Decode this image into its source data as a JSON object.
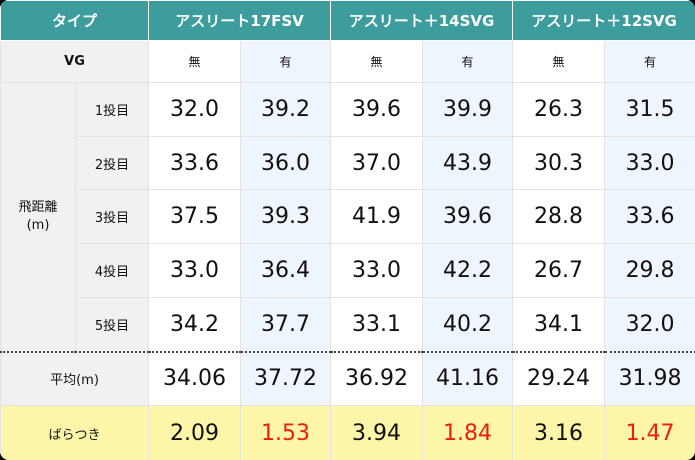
{
  "header": {
    "type_label": "タイプ",
    "models": [
      "アスリート17FSV",
      "アスリート＋14SVG",
      "アスリート＋12SVG"
    ]
  },
  "vg_row": {
    "label": "VG",
    "values": [
      "無",
      "有",
      "無",
      "有",
      "無",
      "有"
    ]
  },
  "distance": {
    "label": "飛距離\n(m)",
    "rows": [
      {
        "label": "1投目",
        "values": [
          "32.0",
          "39.2",
          "39.6",
          "39.9",
          "26.3",
          "31.5"
        ]
      },
      {
        "label": "2投目",
        "values": [
          "33.6",
          "36.0",
          "37.0",
          "43.9",
          "30.3",
          "33.0"
        ]
      },
      {
        "label": "3投目",
        "values": [
          "37.5",
          "39.3",
          "41.9",
          "39.6",
          "28.8",
          "33.6"
        ]
      },
      {
        "label": "4投目",
        "values": [
          "33.0",
          "36.4",
          "33.0",
          "42.2",
          "26.7",
          "29.8"
        ]
      },
      {
        "label": "5投目",
        "values": [
          "34.2",
          "37.7",
          "33.1",
          "40.2",
          "34.1",
          "32.0"
        ]
      }
    ]
  },
  "average": {
    "label": "平均(m)",
    "values": [
      "34.06",
      "37.72",
      "36.92",
      "41.16",
      "29.24",
      "31.98"
    ]
  },
  "spread": {
    "label": "ばらつき",
    "values": [
      "2.09",
      "1.53",
      "3.94",
      "1.84",
      "3.16",
      "1.47"
    ]
  }
}
